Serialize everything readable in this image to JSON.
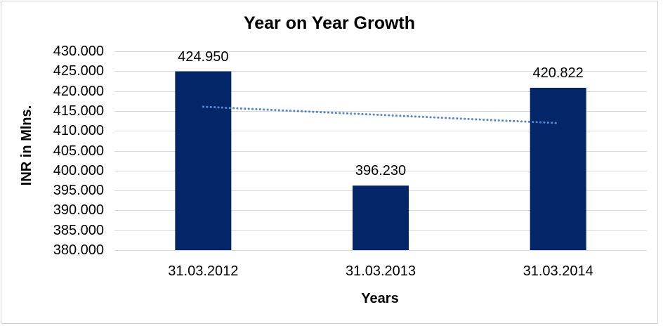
{
  "window": {
    "background": "#ffffff",
    "chart_border_color": "#d3d3d3"
  },
  "chart_data": {
    "type": "bar",
    "title": "Year on Year Growth",
    "xlabel": "Years",
    "ylabel": "INR in Mlns.",
    "categories": [
      "31.03.2012",
      "31.03.2013",
      "31.03.2014"
    ],
    "values": [
      424.95,
      396.23,
      420.822
    ],
    "data_labels": [
      "424.950",
      "396.230",
      "420.822"
    ],
    "ylim": [
      380,
      430
    ],
    "ytick_step": 5,
    "ytick_labels": [
      "430.000",
      "425.000",
      "420.000",
      "415.000",
      "410.000",
      "405.000",
      "400.000",
      "395.000",
      "390.000",
      "385.000",
      "380.000"
    ],
    "grid": "horizontal",
    "legend": "none",
    "bar_color": "#032669",
    "gridline_color": "#d9d9d9",
    "text_color": "#000000",
    "trendline": {
      "type": "linear",
      "style": "round-dot",
      "color": "#5287ce",
      "start_value": 416.06,
      "end_value": 411.94
    }
  }
}
